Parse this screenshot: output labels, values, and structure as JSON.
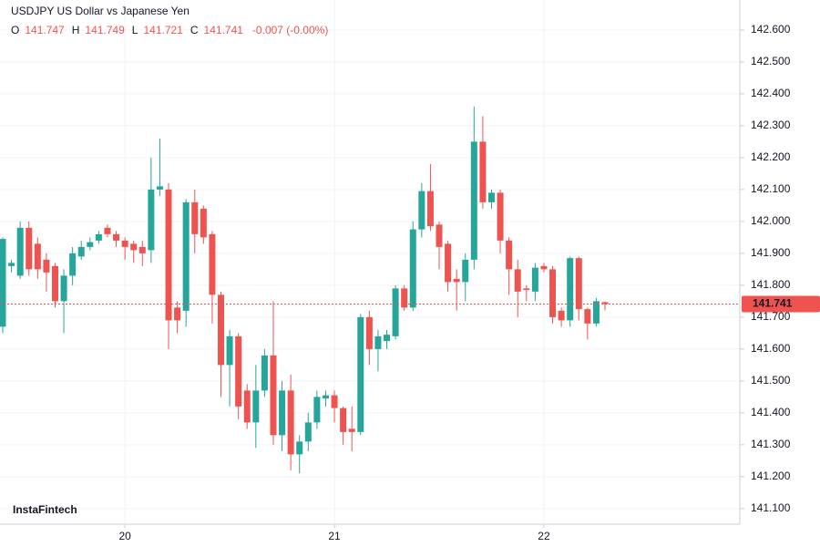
{
  "chart_data": {
    "type": "candlestick",
    "title": "USDJPY US Dollar vs Japanese Yen",
    "ohlc_labels": [
      "O",
      "H",
      "L",
      "C"
    ],
    "change": "-0.007 (-0.00%)",
    "watermark": "InstaFintech",
    "categories": [
      null,
      null,
      null,
      null,
      null,
      null,
      null,
      null,
      null,
      null,
      null,
      null,
      null,
      null,
      "20",
      null,
      null,
      null,
      null,
      null,
      null,
      null,
      null,
      null,
      null,
      null,
      null,
      null,
      null,
      null,
      null,
      null,
      null,
      null,
      null,
      null,
      null,
      null,
      "21",
      null,
      null,
      null,
      null,
      null,
      null,
      null,
      null,
      null,
      null,
      null,
      null,
      null,
      null,
      null,
      null,
      null,
      null,
      null,
      null,
      null,
      null,
      null,
      "22",
      null,
      null,
      null,
      null,
      null,
      null,
      null
    ],
    "open": [
      141.67,
      141.86,
      141.83,
      141.98,
      141.93,
      141.88,
      141.86,
      141.75,
      141.83,
      141.89,
      141.92,
      141.94,
      141.98,
      141.96,
      141.94,
      141.93,
      141.92,
      141.91,
      142.1,
      142.1,
      141.73,
      141.72,
      142.06,
      142.04,
      141.96,
      141.77,
      141.55,
      141.64,
      141.47,
      141.37,
      141.47,
      141.58,
      141.33,
      141.47,
      141.27,
      141.31,
      141.37,
      141.445,
      141.455,
      141.415,
      141.35,
      141.34,
      141.7,
      141.6,
      141.625,
      141.64,
      141.79,
      141.73,
      141.975,
      142.095,
      141.99,
      141.93,
      141.82,
      141.81,
      141.88,
      142.25,
      142.06,
      142.09,
      141.94,
      141.85,
      141.79,
      141.78,
      141.86,
      141.85,
      141.72,
      141.69,
      141.885,
      141.725,
      141.68,
      141.747
    ],
    "high": [
      141.95,
      141.88,
      142.0,
      142.0,
      141.95,
      141.9,
      141.87,
      141.85,
      141.92,
      141.94,
      141.95,
      141.97,
      141.99,
      141.97,
      141.95,
      141.94,
      141.94,
      142.2,
      142.26,
      142.12,
      141.75,
      142.07,
      142.1,
      142.05,
      141.97,
      141.78,
      141.66,
      141.65,
      141.49,
      141.55,
      141.6,
      141.75,
      141.5,
      141.52,
      141.33,
      141.4,
      141.47,
      141.47,
      141.47,
      141.42,
      141.42,
      141.71,
      141.72,
      141.66,
      141.66,
      141.8,
      141.8,
      142.0,
      142.12,
      142.18,
      142.0,
      141.94,
      141.85,
      141.9,
      142.36,
      142.33,
      142.1,
      142.1,
      141.95,
      141.88,
      141.8,
      141.87,
      141.87,
      141.86,
      141.73,
      141.89,
      141.89,
      141.73,
      141.76,
      141.749
    ],
    "low": [
      141.65,
      141.84,
      141.82,
      141.83,
      141.82,
      141.78,
      141.73,
      141.65,
      141.8,
      141.88,
      141.91,
      141.93,
      141.95,
      141.92,
      141.88,
      141.87,
      141.86,
      141.87,
      142.08,
      141.6,
      141.65,
      141.67,
      141.9,
      141.93,
      141.68,
      141.45,
      141.42,
      141.38,
      141.35,
      141.29,
      141.45,
      141.3,
      141.28,
      141.22,
      141.21,
      141.28,
      141.35,
      141.42,
      141.37,
      141.3,
      141.28,
      141.33,
      141.55,
      141.53,
      141.6,
      141.63,
      141.72,
      141.72,
      141.95,
      141.97,
      141.85,
      141.78,
      141.72,
      141.75,
      141.85,
      142.04,
      142.04,
      141.9,
      141.77,
      141.7,
      141.75,
      141.75,
      141.84,
      141.68,
      141.67,
      141.67,
      141.69,
      141.63,
      141.67,
      141.721
    ],
    "close": [
      141.945,
      141.87,
      141.98,
      141.85,
      141.85,
      141.84,
      141.75,
      141.83,
      141.9,
      141.92,
      141.935,
      141.96,
      141.96,
      141.94,
      141.92,
      141.91,
      141.9,
      142.1,
      142.11,
      141.69,
      141.69,
      142.06,
      141.96,
      141.95,
      141.77,
      141.55,
      141.64,
      141.42,
      141.37,
      141.47,
      141.58,
      141.33,
      141.47,
      141.27,
      141.31,
      141.37,
      141.45,
      141.455,
      141.415,
      141.34,
      141.34,
      141.7,
      141.6,
      141.64,
      141.645,
      141.79,
      141.73,
      141.975,
      142.095,
      141.985,
      141.92,
      141.81,
      141.81,
      141.88,
      142.25,
      142.06,
      142.09,
      141.94,
      141.85,
      141.78,
      141.785,
      141.855,
      141.85,
      141.7,
      141.69,
      141.885,
      141.725,
      141.68,
      141.75,
      141.741
    ],
    "up_color": "#26a69a",
    "down_color": "#ef5350",
    "ylim": [
      141.051,
      142.694
    ],
    "yticks": [
      {
        "value": 141.1,
        "label": "141.100"
      },
      {
        "value": 141.2,
        "label": "141.200"
      },
      {
        "value": 141.3,
        "label": "141.300"
      },
      {
        "value": 141.4,
        "label": "141.400"
      },
      {
        "value": 141.5,
        "label": "141.500"
      },
      {
        "value": 141.6,
        "label": "141.600"
      },
      {
        "value": 141.7,
        "label": "141.700"
      },
      {
        "value": 141.8,
        "label": "141.800"
      },
      {
        "value": 141.9,
        "label": "141.900"
      },
      {
        "value": 142.0,
        "label": "142.000"
      },
      {
        "value": 142.1,
        "label": "142.100"
      },
      {
        "value": 142.2,
        "label": "142.200"
      },
      {
        "value": 142.3,
        "label": "142.300"
      },
      {
        "value": 142.4,
        "label": "142.400"
      },
      {
        "value": 142.5,
        "label": "142.500"
      },
      {
        "value": 142.6,
        "label": "142.600"
      }
    ],
    "grid": true
  }
}
